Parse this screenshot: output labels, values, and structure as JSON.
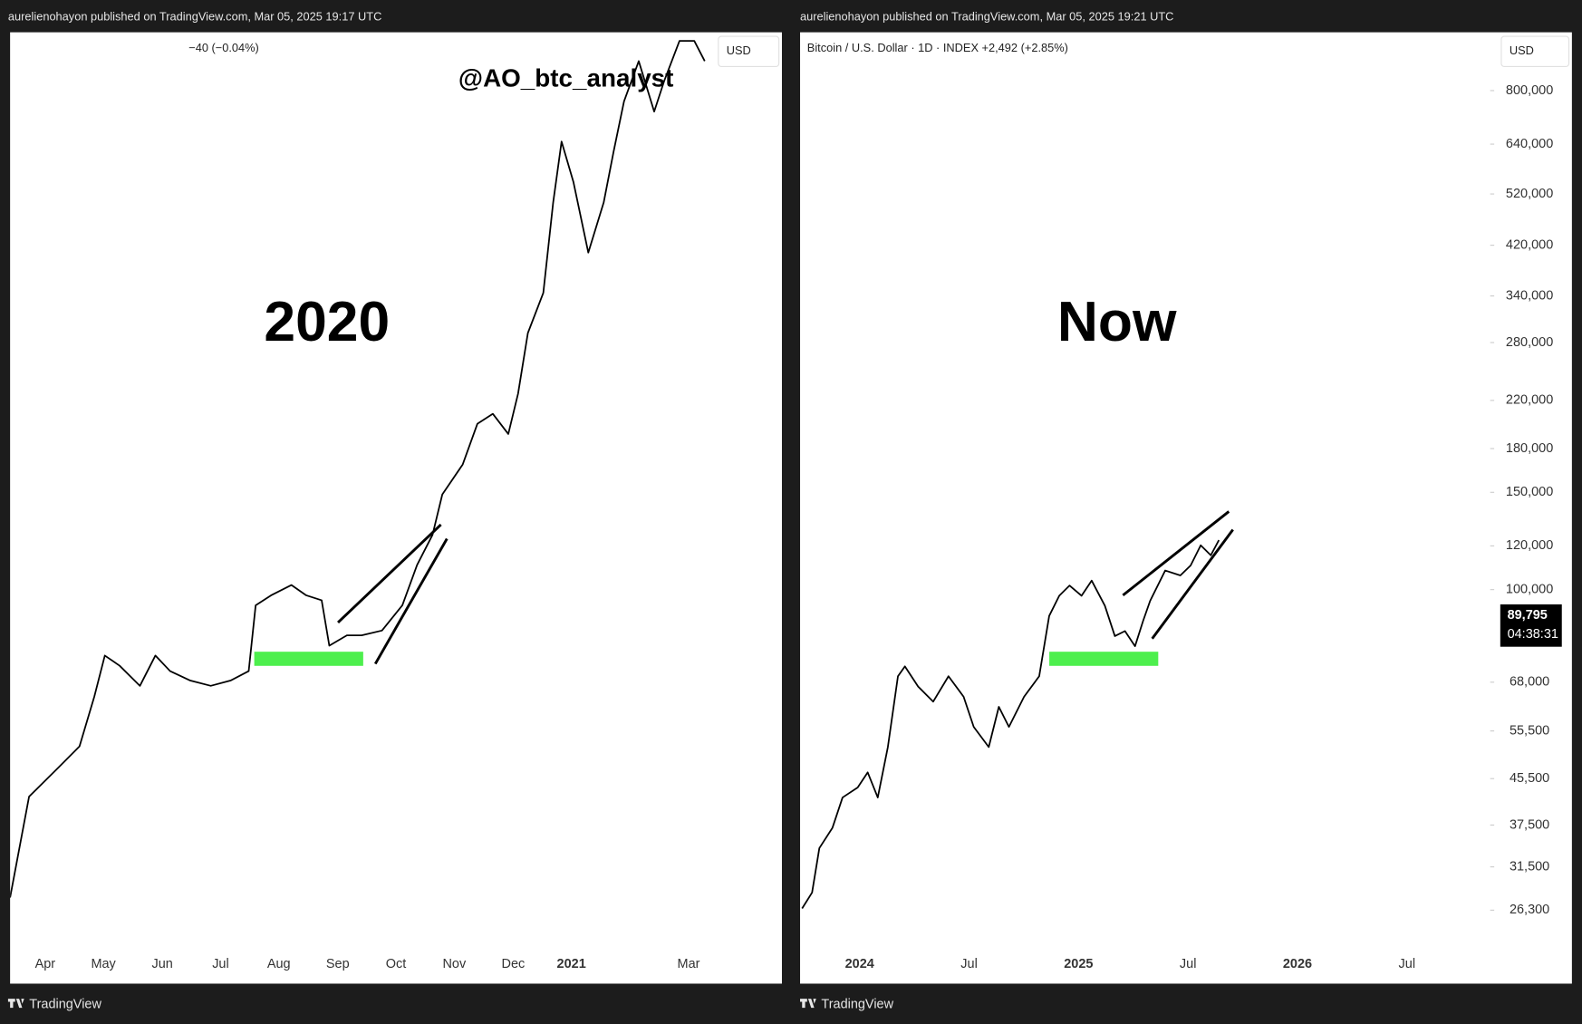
{
  "chart_data": [
    {
      "type": "line",
      "header": "aurelienohayon published on TradingView.com, Mar 05, 2025 19:17 UTC",
      "legend_text": "−40 (−0.04%)",
      "currency": "USD",
      "watermark": "@AO_btc_analyst",
      "annotation": "2020",
      "footer": "TradingView",
      "color": "#000000",
      "log_scale": true,
      "x": [
        2020.2,
        2020.227,
        2020.27,
        2020.299,
        2020.32,
        2020.335,
        2020.356,
        2020.385,
        2020.407,
        2020.428,
        2020.457,
        2020.486,
        2020.514,
        2020.54,
        2020.55,
        2020.572,
        2020.601,
        2020.622,
        2020.644,
        2020.655,
        2020.68,
        2020.701,
        2020.73,
        2020.759,
        2020.78,
        2020.802,
        2020.816,
        2020.845,
        2020.866,
        2020.888,
        2020.91,
        2020.924,
        2020.938,
        2020.96,
        2020.974,
        2020.986,
        2021.003,
        2021.024,
        2021.046,
        2021.06,
        2021.075,
        2021.096,
        2021.118,
        2021.132,
        2021.154,
        2021.175,
        2021.19
      ],
      "values": [
        6000,
        7870,
        8530,
        9010,
        10300,
        11500,
        11190,
        10600,
        11500,
        11030,
        10750,
        10600,
        10750,
        11030,
        13160,
        13520,
        13900,
        13520,
        13340,
        11810,
        12140,
        12140,
        12300,
        13160,
        14670,
        15910,
        17730,
        19220,
        21440,
        22020,
        20860,
        23250,
        27360,
        30480,
        38880,
        45780,
        41040,
        33960,
        38880,
        44520,
        51000,
        56820,
        49620,
        53820,
        60000,
        60000,
        56820
      ],
      "xlim": [
        2020.2,
        2021.3
      ],
      "xticks": [
        {
          "value": 2020.25,
          "label": "Apr"
        },
        {
          "value": 2020.333,
          "label": "May"
        },
        {
          "value": 2020.417,
          "label": "Jun"
        },
        {
          "value": 2020.5,
          "label": "Jul"
        },
        {
          "value": 2020.583,
          "label": "Aug"
        },
        {
          "value": 2020.667,
          "label": "Sep"
        },
        {
          "value": 2020.75,
          "label": "Oct"
        },
        {
          "value": 2020.833,
          "label": "Nov"
        },
        {
          "value": 2020.917,
          "label": "Dec"
        },
        {
          "value": 2021.0,
          "label": "2021"
        },
        {
          "value": 2021.167,
          "label": "Mar"
        }
      ],
      "ylim": [
        5350,
        61400
      ]
    },
    {
      "type": "line",
      "header": "aurelienohayon published on TradingView.com, Mar 05, 2025 19:21 UTC",
      "legend_text": "Bitcoin / U.S. Dollar · 1D · INDEX  +2,492 (+2.85%)",
      "currency": "USD",
      "annotation": "Now",
      "footer": "TradingView",
      "color": "#000000",
      "log_scale": true,
      "x": [
        2023.737,
        2023.783,
        2023.816,
        2023.876,
        2023.922,
        2023.991,
        2024.037,
        2024.083,
        2024.129,
        2024.175,
        2024.207,
        2024.267,
        2024.336,
        2024.406,
        2024.475,
        2024.521,
        2024.59,
        2024.636,
        2024.682,
        2024.751,
        2024.82,
        2024.866,
        2024.912,
        2024.959,
        2025.014,
        2025.06,
        2025.12,
        2025.166,
        2025.212,
        2025.258,
        2025.295,
        2025.327,
        2025.396,
        2025.465,
        2025.512,
        2025.558,
        2025.604,
        2025.641
      ],
      "values": [
        26490,
        28300,
        34050,
        37070,
        42050,
        43850,
        46700,
        42050,
        51900,
        69700,
        72640,
        66780,
        62700,
        69700,
        64000,
        56450,
        51900,
        61380,
        56450,
        64000,
        69700,
        89640,
        97500,
        101700,
        97500,
        103850,
        93500,
        82400,
        84160,
        79000,
        87800,
        95480,
        108300,
        106100,
        110600,
        120300,
        115400,
        122900
      ],
      "xlim": [
        2023.728,
        2026.871
      ],
      "xticks": [
        {
          "value": 2024,
          "label": "2024"
        },
        {
          "value": 2024.5,
          "label": "Jul"
        },
        {
          "value": 2025,
          "label": "2025"
        },
        {
          "value": 2025.5,
          "label": "Jul"
        },
        {
          "value": 2026,
          "label": "2026"
        },
        {
          "value": 2026.5,
          "label": "Jul"
        }
      ],
      "ylim": [
        23200,
        1020000
      ],
      "yticks": [
        {
          "value": 800000,
          "label": "800,000"
        },
        {
          "value": 640000,
          "label": "640,000"
        },
        {
          "value": 520000,
          "label": "520,000"
        },
        {
          "value": 420000,
          "label": "420,000"
        },
        {
          "value": 340000,
          "label": "340,000"
        },
        {
          "value": 280000,
          "label": "280,000"
        },
        {
          "value": 220000,
          "label": "220,000"
        },
        {
          "value": 180000,
          "label": "180,000"
        },
        {
          "value": 150000,
          "label": "150,000"
        },
        {
          "value": 120000,
          "label": "120,000"
        },
        {
          "value": 100000,
          "label": "100,000"
        },
        {
          "value": 68000,
          "label": "68,000"
        },
        {
          "value": 55500,
          "label": "55,500"
        },
        {
          "value": 45500,
          "label": "45,500"
        },
        {
          "value": 37500,
          "label": "37,500"
        },
        {
          "value": 31500,
          "label": "31,500"
        },
        {
          "value": 26300,
          "label": "26,300"
        }
      ],
      "last_price": {
        "value": 89795,
        "label": "89,795"
      },
      "countdown": "04:38:31"
    }
  ]
}
